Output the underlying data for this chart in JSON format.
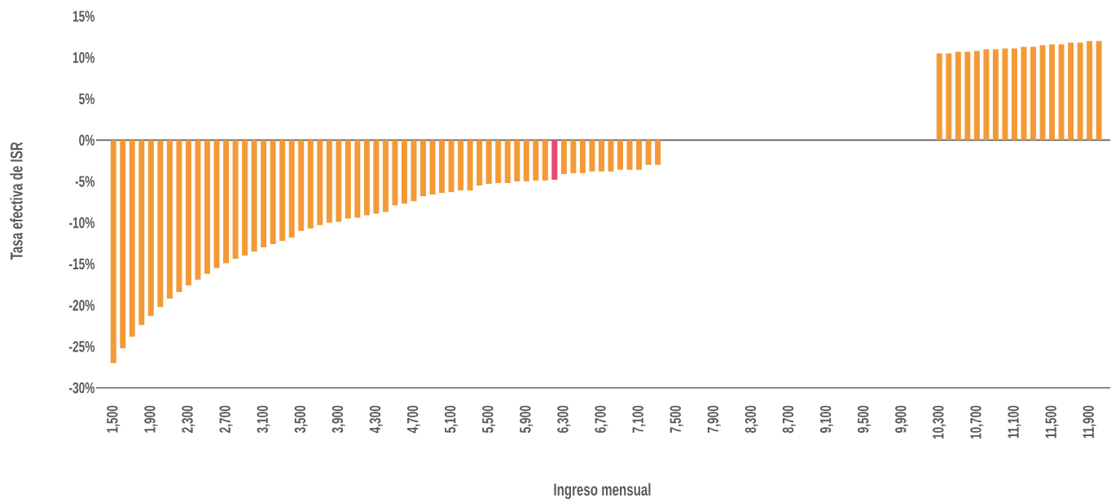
{
  "chart_data": {
    "type": "bar",
    "xlabel": "Ingreso mensual",
    "ylabel": "Tasa efectiva de ISR",
    "categories": [
      "1,500",
      null,
      null,
      null,
      "1,900",
      null,
      null,
      null,
      "2,300",
      null,
      null,
      null,
      "2,700",
      null,
      null,
      null,
      "3,100",
      null,
      null,
      null,
      "3,500",
      null,
      null,
      null,
      "3,900",
      null,
      null,
      null,
      "4,300",
      null,
      null,
      null,
      "4,700",
      null,
      null,
      null,
      "5,100",
      null,
      null,
      null,
      "5,500",
      null,
      null,
      null,
      "5,900",
      null,
      null,
      null,
      "6,300",
      null,
      null,
      null,
      "6,700",
      null,
      null,
      null,
      "7,100",
      null,
      null,
      null,
      "7,500",
      null,
      null,
      null,
      "7,900",
      null,
      null,
      null,
      "8,300",
      null,
      null,
      null,
      "8,700",
      null,
      null,
      null,
      "9,100",
      null,
      null,
      null,
      "9,500",
      null,
      null,
      null,
      "9,900",
      null,
      null,
      null,
      "10,300",
      null,
      null,
      null,
      "10,700",
      null,
      null,
      null,
      "11,100",
      null,
      null,
      null,
      "11,500",
      null,
      null,
      null,
      "11,900",
      null
    ],
    "values": [
      -27.0,
      -25.2,
      -23.8,
      -22.4,
      -21.3,
      -20.2,
      -19.2,
      -18.4,
      -17.6,
      -16.9,
      -16.2,
      -15.5,
      -14.9,
      -14.4,
      -14.0,
      -13.5,
      -13.0,
      -12.6,
      -12.2,
      -11.8,
      -11.0,
      -10.7,
      -10.3,
      -10.0,
      -9.9,
      -9.5,
      -9.4,
      -9.1,
      -8.9,
      -8.7,
      -7.9,
      -7.7,
      -7.4,
      -6.8,
      -6.6,
      -6.4,
      -6.3,
      -6.1,
      -6.1,
      -5.5,
      -5.3,
      -5.2,
      -5.2,
      -5.0,
      -5.0,
      -4.9,
      -4.9,
      -4.8,
      -4.1,
      -4.0,
      -4.0,
      -3.8,
      -3.8,
      -3.8,
      -3.6,
      -3.6,
      -3.6,
      -3.0,
      -3.0,
      null,
      null,
      null,
      null,
      null,
      null,
      null,
      null,
      null,
      null,
      null,
      null,
      null,
      null,
      null,
      null,
      null,
      null,
      null,
      null,
      null,
      null,
      null,
      null,
      null,
      null,
      null,
      null,
      null,
      10.5,
      10.5,
      10.7,
      10.7,
      10.8,
      11.0,
      11.0,
      11.1,
      11.1,
      11.3,
      11.3,
      11.5,
      11.6,
      11.6,
      11.8,
      11.8,
      12.0,
      12.0
    ],
    "colors": [
      "#f39a37",
      "#f39a37",
      "#f39a37",
      "#f39a37",
      "#f39a37",
      "#f39a37",
      "#f39a37",
      "#f39a37",
      "#f39a37",
      "#f39a37",
      "#f39a37",
      "#f39a37",
      "#f39a37",
      "#f39a37",
      "#f39a37",
      "#f39a37",
      "#f39a37",
      "#f39a37",
      "#f39a37",
      "#f39a37",
      "#f39a37",
      "#f39a37",
      "#f39a37",
      "#f39a37",
      "#f39a37",
      "#f39a37",
      "#f39a37",
      "#f39a37",
      "#f39a37",
      "#f39a37",
      "#f39a37",
      "#f39a37",
      "#f39a37",
      "#f39a37",
      "#f39a37",
      "#f39a37",
      "#f39a37",
      "#f39a37",
      "#f39a37",
      "#f39a37",
      "#f39a37",
      "#f39a37",
      "#f39a37",
      "#f39a37",
      "#f39a37",
      "#f39a37",
      "#f39a37",
      "#e84a6f",
      "#f39a37",
      "#f39a37",
      "#f39a37",
      "#f39a37",
      "#f39a37",
      "#f39a37",
      "#f39a37",
      "#f39a37",
      "#f39a37",
      "#f39a37",
      "#f39a37",
      "#f39a37",
      "#f39a37",
      "#f39a37",
      "#f39a37",
      "#f39a37",
      "#f39a37",
      "#f39a37",
      "#f39a37",
      "#f39a37",
      "#f39a37",
      "#f39a37",
      "#f39a37",
      "#f39a37",
      "#f39a37",
      "#f39a37",
      "#f39a37",
      "#f39a37",
      "#f39a37",
      "#f39a37",
      "#f39a37",
      "#f39a37",
      "#f39a37",
      "#f39a37",
      "#f39a37",
      "#f39a37",
      "#f39a37",
      "#f39a37",
      "#f39a37",
      "#f39a37",
      "#f39a37",
      "#f39a37",
      "#f39a37",
      "#f39a37",
      "#f39a37",
      "#f39a37",
      "#f39a37",
      "#f39a37",
      "#f39a37",
      "#f39a37",
      "#f39a37",
      "#f39a37",
      "#f39a37",
      "#f39a37",
      "#f39a37",
      "#f39a37",
      "#f39a37",
      "#f39a37"
    ],
    "ylim": [
      -30,
      15
    ],
    "yticks": [
      {
        "value": -30,
        "label": "-30%"
      },
      {
        "value": -25,
        "label": "-25%"
      },
      {
        "value": -20,
        "label": "-20%"
      },
      {
        "value": -15,
        "label": "-15%"
      },
      {
        "value": -10,
        "label": "-10%"
      },
      {
        "value": -5,
        "label": "-5%"
      },
      {
        "value": 0,
        "label": "0%"
      },
      {
        "value": 5,
        "label": "5%"
      },
      {
        "value": 10,
        "label": "10%"
      },
      {
        "value": 15,
        "label": "15%"
      }
    ],
    "ref_lines": [
      {
        "axis": "y",
        "value": 0,
        "color": "#6d6e71"
      }
    ]
  }
}
